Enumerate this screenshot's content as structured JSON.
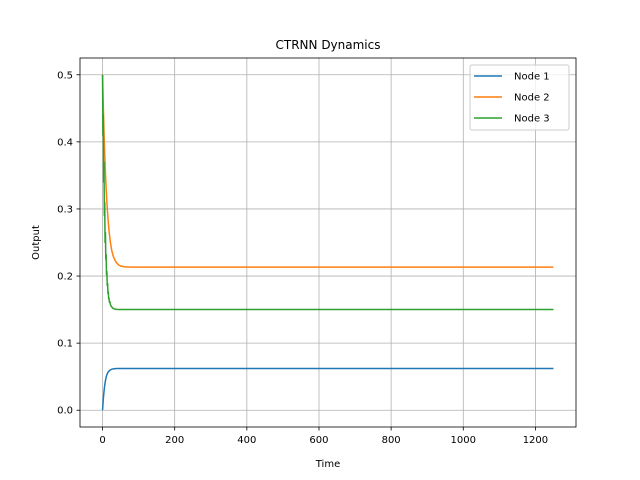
{
  "chart_data": {
    "type": "line",
    "title": "CTRNN Dynamics",
    "xlabel": "Time",
    "ylabel": "Output",
    "xlim": [
      -62.5,
      1312.5
    ],
    "ylim": [
      -0.025,
      0.525
    ],
    "xticks": [
      0,
      200,
      400,
      600,
      800,
      1000,
      1200
    ],
    "yticks": [
      0.0,
      0.1,
      0.2,
      0.3,
      0.4,
      0.5
    ],
    "grid": true,
    "legend_position": "top-right",
    "series": [
      {
        "name": "Node 1",
        "color": "#1f77b4",
        "x": [
          0,
          2,
          4,
          6,
          8,
          10,
          12,
          15,
          18,
          22,
          26,
          30,
          35,
          40,
          50,
          60,
          80,
          100,
          200,
          400,
          600,
          800,
          1000,
          1250
        ],
        "y": [
          0.0,
          0.016,
          0.028,
          0.037,
          0.044,
          0.049,
          0.053,
          0.0565,
          0.0585,
          0.0602,
          0.0612,
          0.0617,
          0.062,
          0.0621,
          0.0622,
          0.0622,
          0.0622,
          0.0622,
          0.0622,
          0.0622,
          0.0622,
          0.0622,
          0.0622,
          0.0622
        ]
      },
      {
        "name": "Node 2",
        "color": "#ff7f0e",
        "x": [
          0,
          2,
          4,
          6,
          8,
          10,
          12,
          15,
          18,
          22,
          26,
          30,
          35,
          40,
          45,
          50,
          60,
          70,
          80,
          100,
          200,
          400,
          600,
          800,
          1000,
          1250
        ],
        "y": [
          0.5,
          0.455,
          0.415,
          0.382,
          0.354,
          0.33,
          0.31,
          0.286,
          0.267,
          0.249,
          0.237,
          0.229,
          0.223,
          0.219,
          0.2165,
          0.215,
          0.2138,
          0.2135,
          0.2133,
          0.2133,
          0.2133,
          0.2133,
          0.2133,
          0.2133,
          0.2133,
          0.2133
        ]
      },
      {
        "name": "Node 3",
        "color": "#2ca02c",
        "x": [
          0,
          1,
          2,
          3,
          4,
          5,
          6,
          7,
          8,
          9,
          10,
          11,
          12,
          13,
          14,
          15,
          16,
          17,
          18,
          19,
          20,
          22,
          24,
          26,
          28,
          30,
          33,
          36,
          40,
          45,
          50,
          60,
          80,
          100,
          200,
          400,
          600,
          800,
          1000,
          1250
        ],
        "y": [
          0.5,
          0.41,
          0.44,
          0.34,
          0.37,
          0.29,
          0.31,
          0.25,
          0.265,
          0.225,
          0.232,
          0.202,
          0.207,
          0.186,
          0.189,
          0.174,
          0.176,
          0.166,
          0.167,
          0.161,
          0.162,
          0.157,
          0.155,
          0.1535,
          0.1525,
          0.1515,
          0.151,
          0.1505,
          0.1503,
          0.1502,
          0.1501,
          0.1501,
          0.1501,
          0.1501,
          0.1501,
          0.1501,
          0.1501,
          0.1501,
          0.1501,
          0.1501
        ]
      }
    ]
  }
}
